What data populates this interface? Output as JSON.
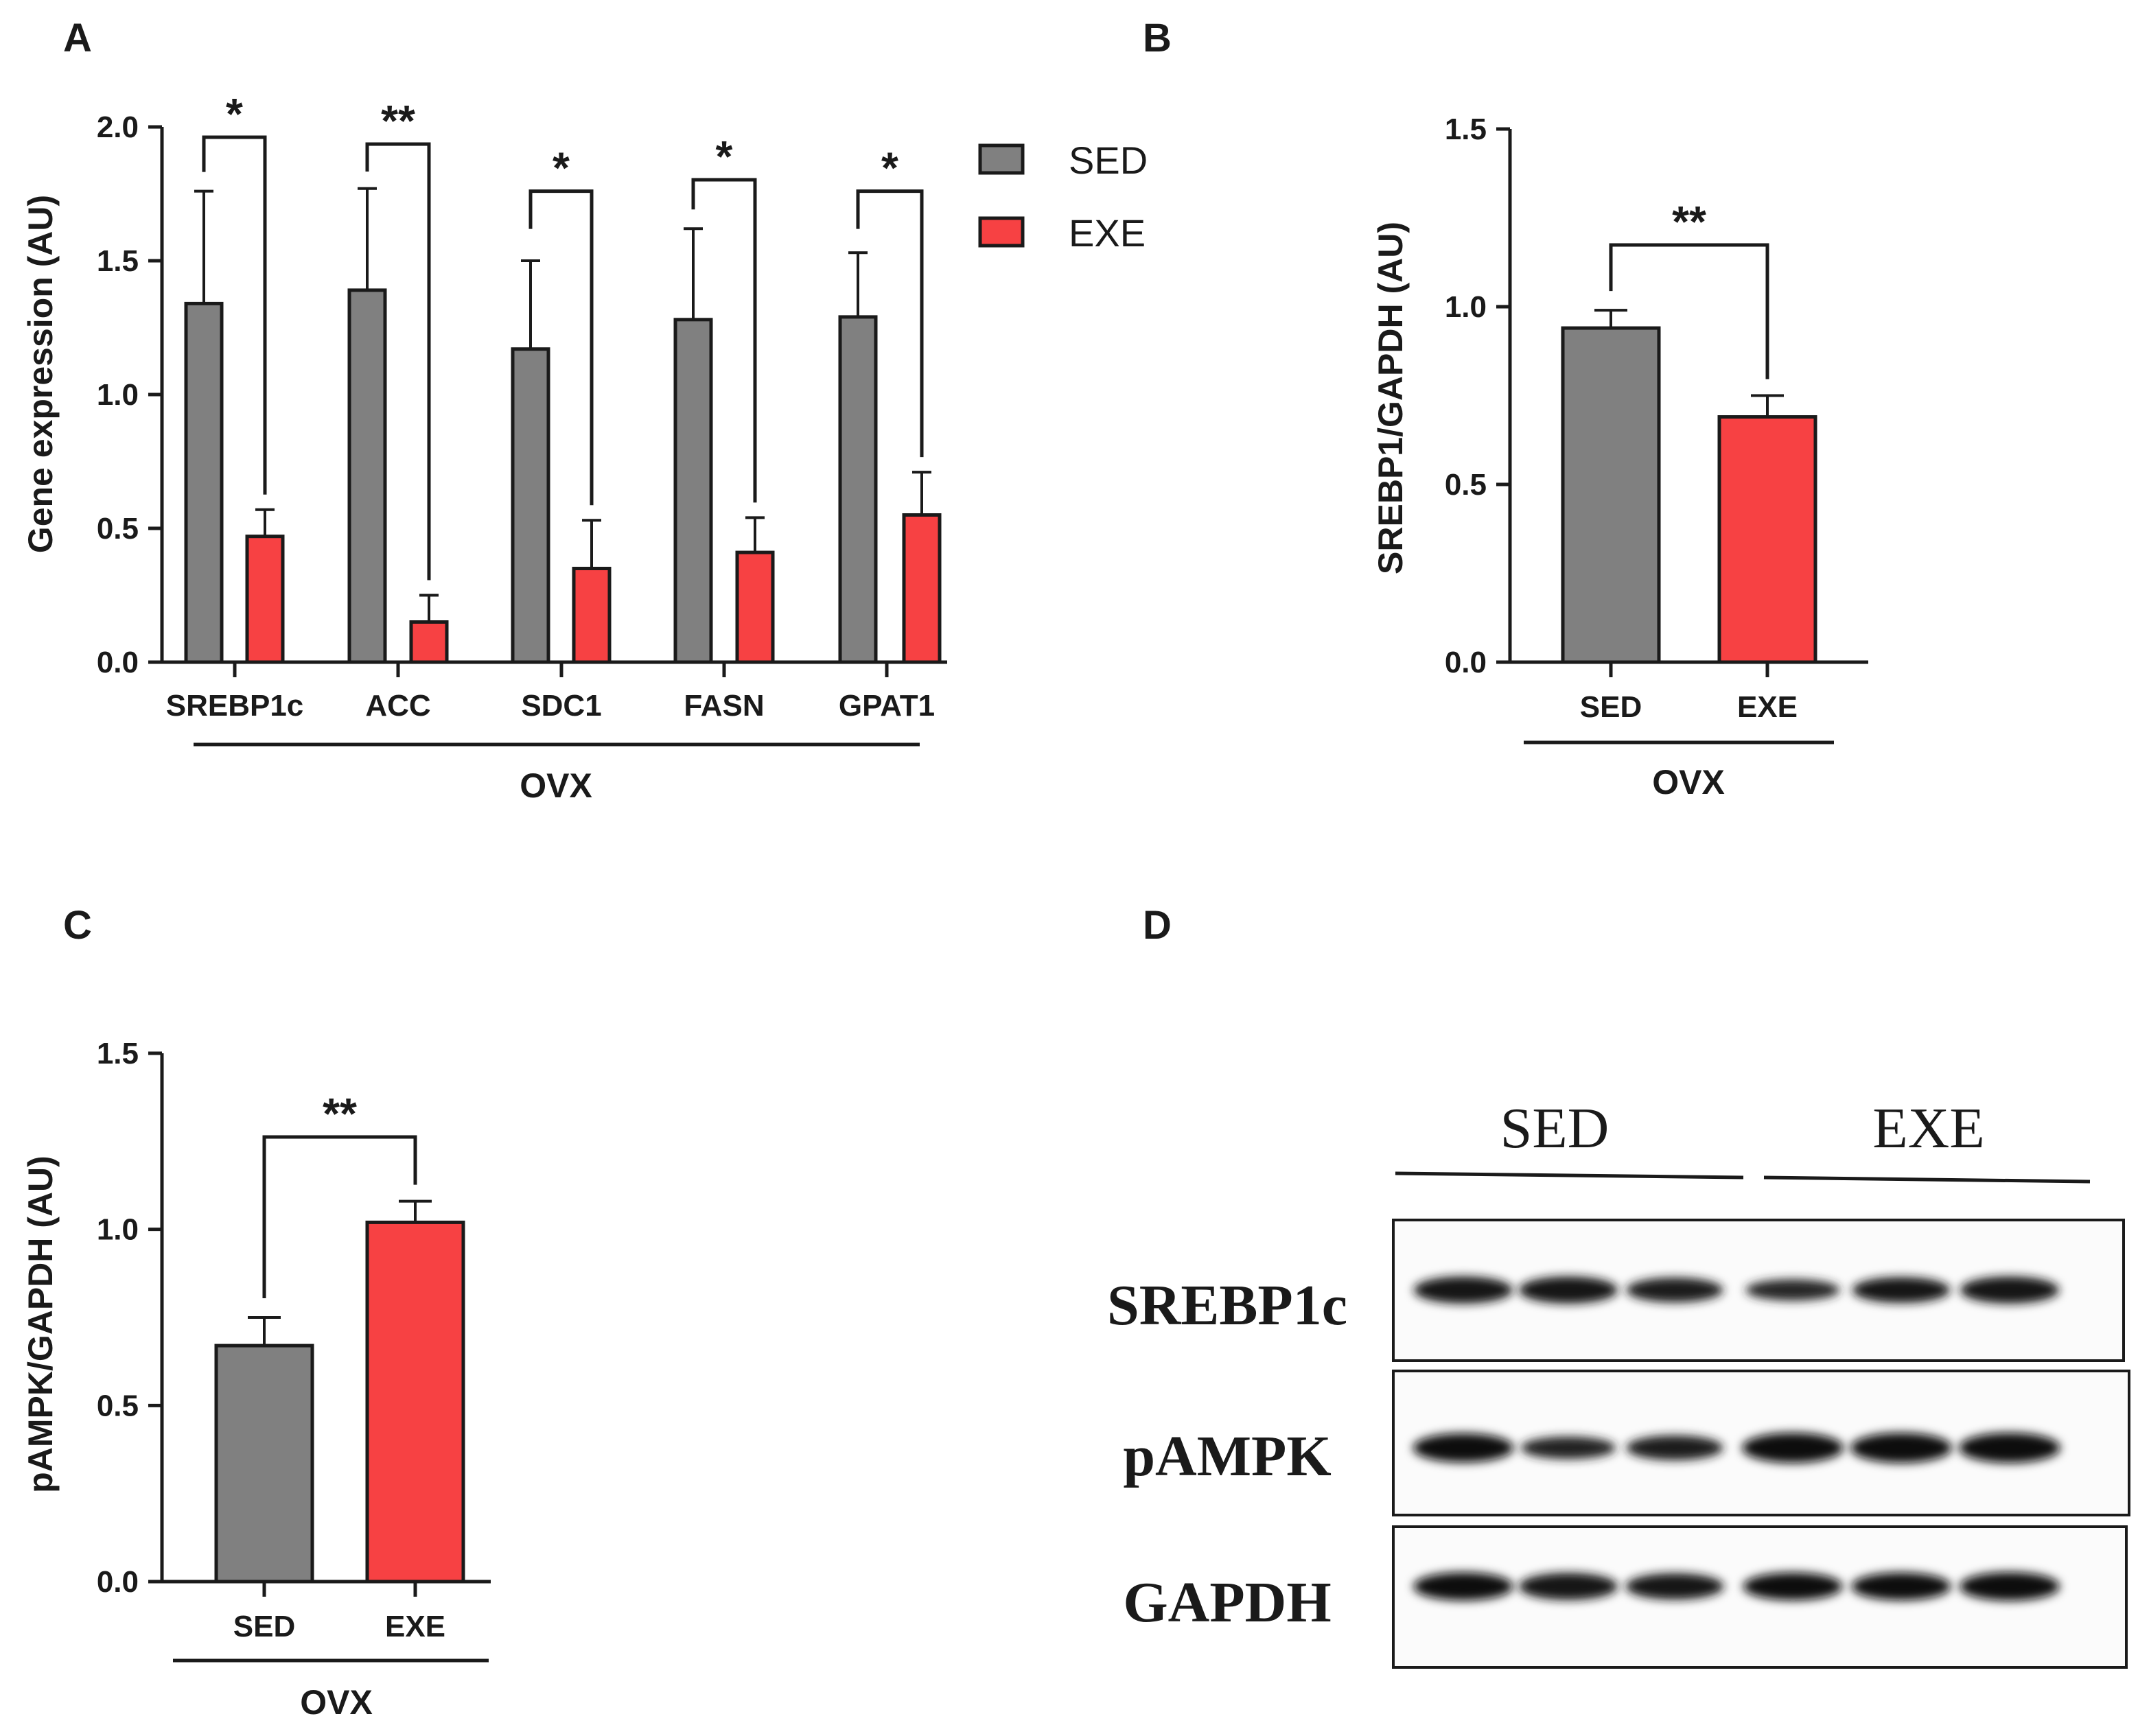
{
  "colors": {
    "sed": "#808080",
    "exe": "#f74143",
    "line": "#1a1a1a"
  },
  "chart_data": [
    {
      "id": "A",
      "type": "bar",
      "panel_label": "A",
      "ylabel": "Gene expression (AU)",
      "group_label": "OVX",
      "ylim": [
        0,
        2.0
      ],
      "yticks": [
        "0.0",
        "0.5",
        "1.0",
        "1.5",
        "2.0"
      ],
      "categories": [
        "SREBP1c",
        "ACC",
        "SDC1",
        "FASN",
        "GPAT1"
      ],
      "series": [
        {
          "name": "SED",
          "values": [
            1.34,
            1.39,
            1.17,
            1.28,
            1.29
          ],
          "errors": [
            0.42,
            0.38,
            0.33,
            0.34,
            0.24
          ]
        },
        {
          "name": "EXE",
          "values": [
            0.47,
            0.15,
            0.35,
            0.41,
            0.55
          ],
          "errors": [
            0.1,
            0.1,
            0.18,
            0.13,
            0.16
          ]
        }
      ],
      "significance": [
        "*",
        "**",
        "*",
        "*",
        "*"
      ],
      "legend": [
        "SED",
        "EXE"
      ]
    },
    {
      "id": "B",
      "type": "bar",
      "panel_label": "B",
      "ylabel": "SREBP1/GAPDH (AU)",
      "group_label": "OVX",
      "ylim": [
        0,
        1.5
      ],
      "yticks": [
        "0.0",
        "0.5",
        "1.0",
        "1.5"
      ],
      "categories": [
        "SED",
        "EXE"
      ],
      "values": [
        0.94,
        0.69
      ],
      "errors": [
        0.05,
        0.06
      ],
      "significance": "**"
    },
    {
      "id": "C",
      "type": "bar",
      "panel_label": "C",
      "ylabel": "pAMPK/GAPDH (AU)",
      "group_label": "OVX",
      "ylim": [
        0,
        1.5
      ],
      "yticks": [
        "0.0",
        "0.5",
        "1.0",
        "1.5"
      ],
      "categories": [
        "SED",
        "EXE"
      ],
      "values": [
        0.67,
        1.02
      ],
      "errors": [
        0.08,
        0.06
      ],
      "significance": "**"
    }
  ],
  "blot": {
    "panel_label": "D",
    "groups": [
      "SED",
      "EXE"
    ],
    "rows": [
      {
        "label": "SREBP1c",
        "intensities": [
          0.85,
          0.85,
          0.72,
          0.55,
          0.78,
          0.85
        ]
      },
      {
        "label": "pAMPK",
        "intensities": [
          0.95,
          0.6,
          0.72,
          1.0,
          1.0,
          1.0
        ]
      },
      {
        "label": "GAPDH",
        "intensities": [
          0.9,
          0.85,
          0.8,
          0.88,
          0.88,
          0.92
        ]
      }
    ]
  }
}
